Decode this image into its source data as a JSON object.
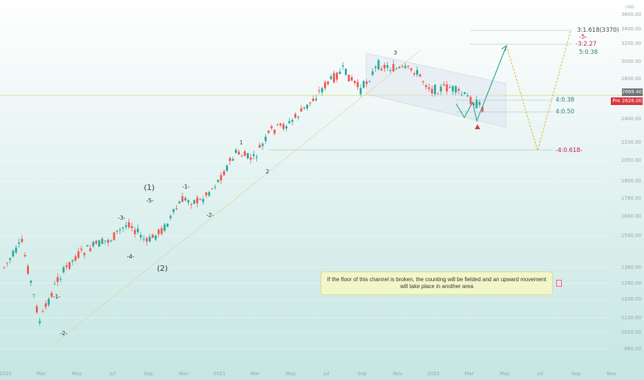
{
  "chart_data": {
    "type": "candlestick",
    "currency": "USD",
    "y_ticks": [
      3600,
      3400,
      3200,
      3000,
      2800,
      2600,
      2400,
      2200,
      2050,
      1900,
      1780,
      1660,
      1540,
      1360,
      1280,
      1200,
      1120,
      1050,
      960
    ],
    "x_ticks": [
      "2020",
      "Mar",
      "May",
      "Jul",
      "Sep",
      "Nov",
      "2021",
      "Mar",
      "May",
      "Jul",
      "Sep",
      "Nov",
      "2022",
      "Mar",
      "May",
      "Jul",
      "Sep",
      "Nov"
    ],
    "price_last": "2668.40",
    "price_pre_label": "Pre",
    "price_pre": "2626.00",
    "close_path": [
      [
        "2020-01",
        1360
      ],
      [
        "2020-02",
        1500
      ],
      [
        "2020-03",
        1100
      ],
      [
        "2020-04",
        1300
      ],
      [
        "2020-05",
        1420
      ],
      [
        "2020-06",
        1480
      ],
      [
        "2020-07",
        1520
      ],
      [
        "2020-08",
        1620
      ],
      [
        "2020-09",
        1500
      ],
      [
        "2020-10",
        1590
      ],
      [
        "2020-11",
        1770
      ],
      [
        "2020-12",
        1760
      ],
      [
        "2021-01",
        1900
      ],
      [
        "2021-02",
        2110
      ],
      [
        "2021-03",
        2060
      ],
      [
        "2021-04",
        2300
      ],
      [
        "2021-05",
        2360
      ],
      [
        "2021-06",
        2540
      ],
      [
        "2021-07",
        2740
      ],
      [
        "2021-08",
        2900
      ],
      [
        "2021-09",
        2700
      ],
      [
        "2021-10",
        2960
      ],
      [
        "2021-11",
        2910
      ],
      [
        "2021-12",
        2900
      ],
      [
        "2022-01",
        2700
      ],
      [
        "2022-02",
        2720
      ],
      [
        "2022-03",
        2630
      ],
      [
        "2022-04",
        2500
      ]
    ],
    "projection_up": [
      [
        "2022-04",
        2450
      ],
      [
        "2022-05",
        3150
      ]
    ],
    "projection_alt": [
      [
        "2022-05",
        3150
      ],
      [
        "2022-07",
        2280
      ],
      [
        "2022-08",
        3370
      ]
    ],
    "wave_labels": [
      "(1)",
      "(2)",
      "-1-",
      "-2-",
      "-3-",
      "-4-",
      "-5-",
      "1",
      "2",
      "3",
      "-1-",
      "-2-"
    ],
    "fib_levels": [
      {
        "label": "3:1.618(3370)",
        "value": 3370
      },
      {
        "label": "-5-",
        "value": 3300
      },
      {
        "label": "-3:2.27",
        "value": 3250
      },
      {
        "label": "5:0.38",
        "value": 3170
      },
      {
        "label": "4:0.38",
        "value": 2635
      },
      {
        "label": "4:0.50",
        "value": 2500
      },
      {
        "label": "-4:0.618-",
        "value": 2180
      }
    ],
    "annotation": "If the floor of this channel is broken, the counting will be fielded and an upward movement will take place in another area"
  }
}
